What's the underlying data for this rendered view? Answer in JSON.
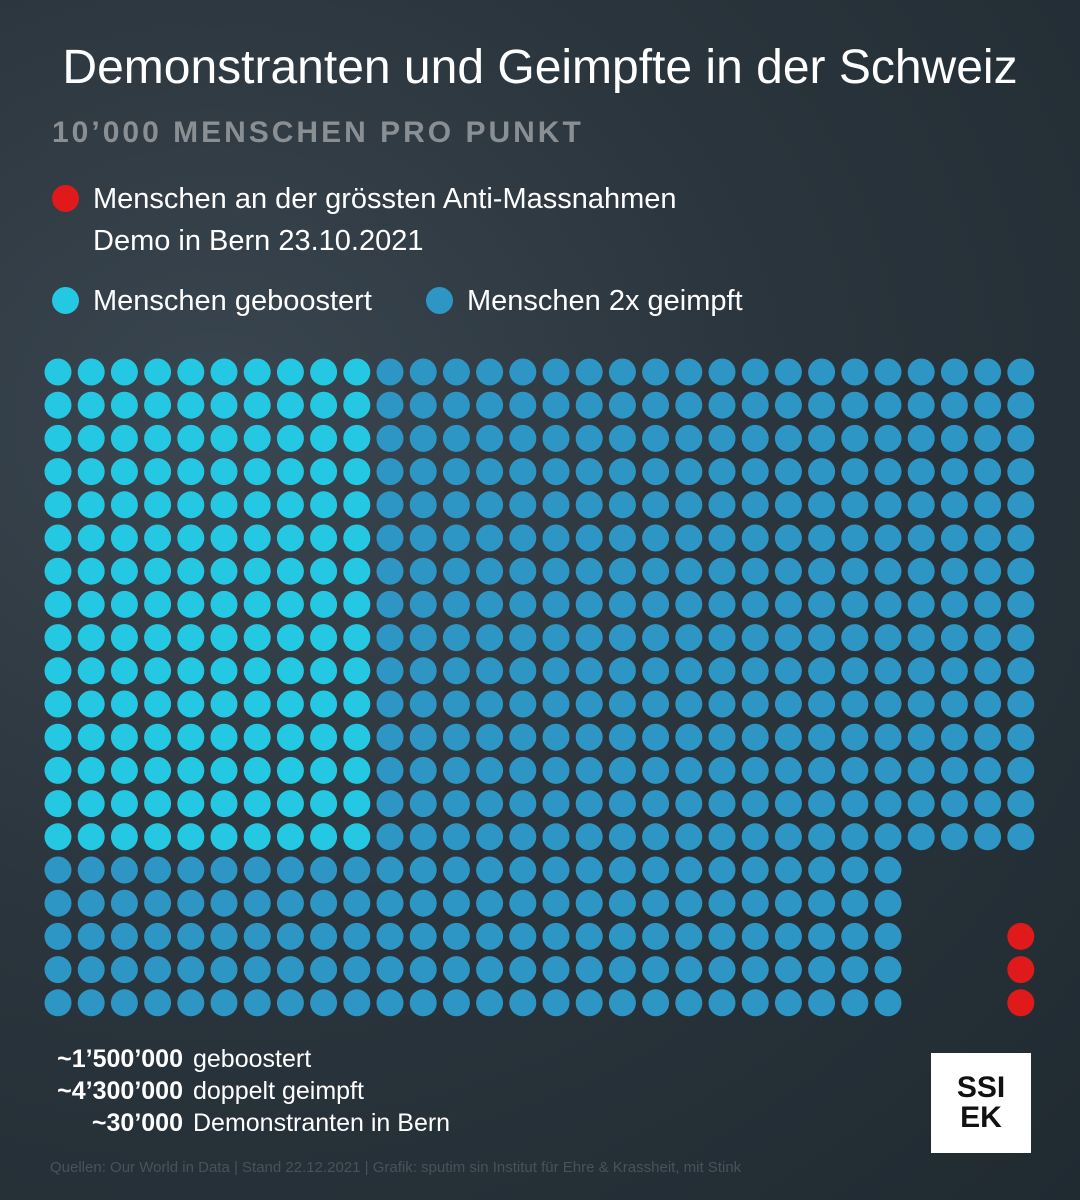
{
  "title": "Demonstranten und Geimpfte in der Schweiz",
  "subtitle": "10’000 MENSCHEN PRO PUNKT",
  "legend": [
    {
      "label": "Menschen an der grössten Anti-Massnahmen\nDemo in Bern 23.10.2021",
      "color": "#e01a1a"
    },
    {
      "label": "Menschen geboostert",
      "color": "#25c8e3"
    },
    {
      "label": "Menschen 2x geimpft",
      "color": "#2e96c4"
    }
  ],
  "totals": [
    {
      "value": "~1’500’000",
      "label": "geboostert"
    },
    {
      "value": "~4’300’000",
      "label": "doppelt geimpft"
    },
    {
      "value": "~30’000",
      "label": "Demonstranten in Bern"
    }
  ],
  "logo": "SSI\nEK",
  "source": "Quellen: Our World in Data | Stand 22.12.2021 | Grafik: sputim sin Institut für Ehre & Krassheit, mit Stink",
  "chart_data": {
    "type": "dot-matrix",
    "unit": "10’000 Menschen pro Punkt",
    "series": [
      {
        "name": "Menschen geboostert",
        "dots": 150,
        "color": "#25c8e3"
      },
      {
        "name": "Menschen 2x geimpft",
        "dots": 430,
        "color": "#2e96c4"
      },
      {
        "name": "Menschen an der grössten Anti-Massnahmen Demo in Bern 23.10.2021",
        "dots": 3,
        "color": "#e01a1a"
      }
    ]
  }
}
